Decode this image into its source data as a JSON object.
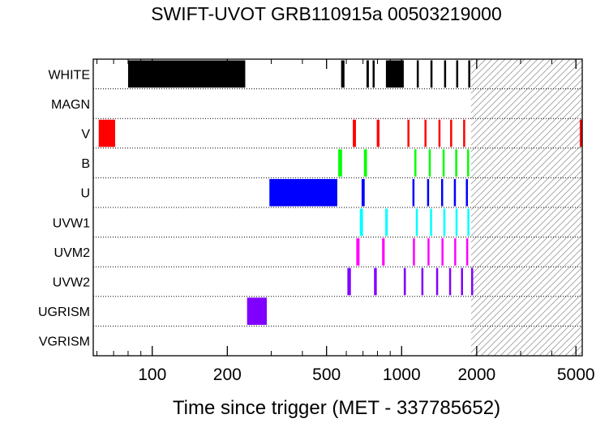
{
  "chart_data": {
    "type": "bar",
    "title": "SWIFT-UVOT GRB110915a 00503219000",
    "xlabel": "Time since trigger (MET - 337785652)",
    "ylabel": "",
    "x_scale": "log",
    "xlim": [
      58,
      5300
    ],
    "x_ticks": [
      100,
      200,
      500,
      1000,
      2000,
      5000
    ],
    "x_tick_labels": [
      "100",
      "200",
      "500",
      "1000",
      "2000",
      "5000"
    ],
    "hatched_region": [
      1900,
      5300
    ],
    "grid": "dotted row separators",
    "categories": [
      "WHITE",
      "MAGN",
      "V",
      "B",
      "U",
      "UVW1",
      "UVM2",
      "UVW2",
      "UGRISM",
      "VGRISM"
    ],
    "series": [
      {
        "category": "WHITE",
        "color": "#000000",
        "intervals": [
          [
            80,
            236
          ],
          [
            572,
            590
          ],
          [
            723,
            739
          ],
          [
            765,
            770
          ],
          [
            865,
            1020
          ],
          [
            1150,
            1170
          ],
          [
            1305,
            1325
          ],
          [
            1480,
            1500
          ],
          [
            1655,
            1675
          ],
          [
            1850,
            1870
          ]
        ]
      },
      {
        "category": "MAGN",
        "color": "#000000",
        "intervals": []
      },
      {
        "category": "V",
        "color": "#ff0000",
        "intervals": [
          [
            61,
            71
          ],
          [
            637,
            656
          ],
          [
            795,
            815
          ],
          [
            1055,
            1070
          ],
          [
            1235,
            1255
          ],
          [
            1405,
            1425
          ],
          [
            1565,
            1585
          ],
          [
            1765,
            1785
          ],
          [
            5180,
            5300
          ]
        ]
      },
      {
        "category": "B",
        "color": "#00ff00",
        "intervals": [
          [
            557,
            577
          ],
          [
            706,
            726
          ],
          [
            1125,
            1145
          ],
          [
            1285,
            1305
          ],
          [
            1460,
            1480
          ],
          [
            1640,
            1660
          ],
          [
            1830,
            1850
          ]
        ]
      },
      {
        "category": "U",
        "color": "#0000ff",
        "intervals": [
          [
            295,
            552
          ],
          [
            691,
            711
          ],
          [
            1105,
            1125
          ],
          [
            1265,
            1285
          ],
          [
            1440,
            1460
          ],
          [
            1620,
            1640
          ],
          [
            1810,
            1830
          ]
        ]
      },
      {
        "category": "UVW1",
        "color": "#00ffff",
        "intervals": [
          [
            680,
            700
          ],
          [
            860,
            880
          ],
          [
            1140,
            1160
          ],
          [
            1300,
            1320
          ],
          [
            1470,
            1490
          ],
          [
            1645,
            1665
          ],
          [
            1835,
            1855
          ]
        ]
      },
      {
        "category": "UVM2",
        "color": "#ff00ff",
        "intervals": [
          [
            658,
            678
          ],
          [
            835,
            855
          ],
          [
            1110,
            1130
          ],
          [
            1270,
            1290
          ],
          [
            1445,
            1465
          ],
          [
            1625,
            1645
          ],
          [
            1815,
            1835
          ]
        ]
      },
      {
        "category": "UVW2",
        "color": "#8000ff",
        "intervals": [
          [
            606,
            626
          ],
          [
            775,
            795
          ],
          [
            1020,
            1040
          ],
          [
            1200,
            1220
          ],
          [
            1375,
            1395
          ],
          [
            1550,
            1570
          ],
          [
            1730,
            1750
          ],
          [
            1900,
            1910
          ]
        ]
      },
      {
        "category": "UGRISM",
        "color": "#8000ff",
        "intervals": [
          [
            240,
            288
          ]
        ]
      },
      {
        "category": "VGRISM",
        "color": "#000000",
        "intervals": []
      }
    ]
  }
}
